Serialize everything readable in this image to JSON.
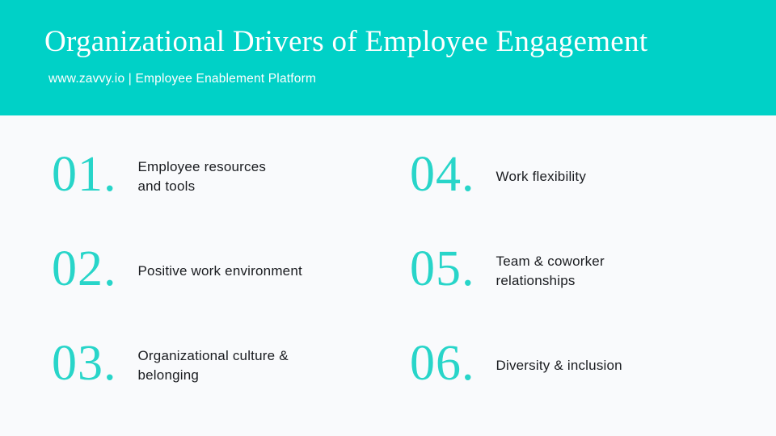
{
  "slide": {
    "title": "Organizational Drivers of Employee Engagement",
    "subtitle": "www.zavvy.io | Employee Enablement Platform"
  },
  "colors": {
    "header_bg": "#00D1C7",
    "accent_number": "#28D5C9",
    "background": "#F9FAFC",
    "text_dark": "#1A1C20",
    "text_light": "#FFFFFF"
  },
  "items": [
    {
      "number": "01.",
      "label": "Employee resources\nand tools"
    },
    {
      "number": "02.",
      "label": "Positive work environment"
    },
    {
      "number": "03.",
      "label": "Organizational culture &\nbelonging"
    },
    {
      "number": "04.",
      "label": "Work flexibility"
    },
    {
      "number": "05.",
      "label": "Team & coworker\nrelationships"
    },
    {
      "number": "06.",
      "label": "Diversity & inclusion"
    }
  ]
}
